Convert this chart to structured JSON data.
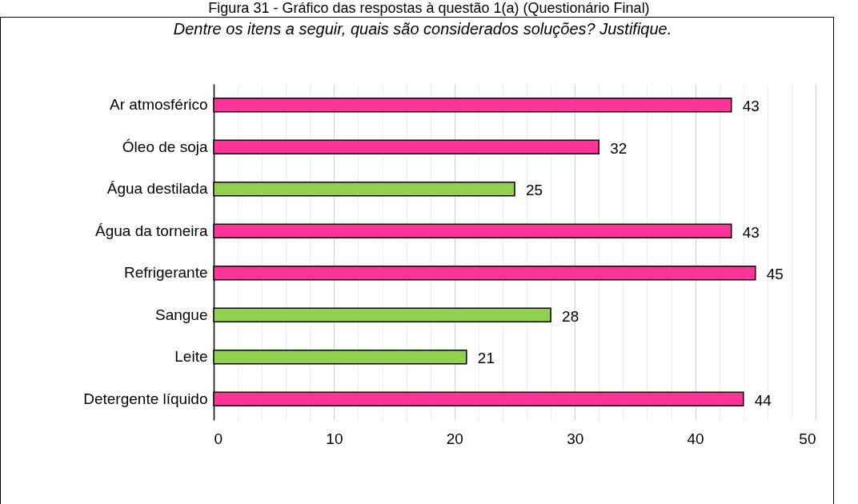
{
  "chart_data": {
    "type": "bar",
    "orientation": "horizontal",
    "title": "Figura 31 - Gráfico das respostas à questão 1(a) (Questionário Final)",
    "subtitle": "Dentre os itens a seguir, quais são considerados soluções? Justifique.",
    "categories": [
      "Ar atmosférico",
      "Óleo de soja",
      "Água destilada",
      "Água da torneira",
      "Refrigerante",
      "Sangue",
      "Leite",
      "Detergente líquido"
    ],
    "values": [
      43,
      32,
      25,
      43,
      45,
      28,
      21,
      44
    ],
    "colors": [
      "#ff3399",
      "#ff3399",
      "#92d050",
      "#ff3399",
      "#ff3399",
      "#92d050",
      "#92d050",
      "#ff3399"
    ],
    "xlim": [
      0,
      50
    ],
    "xticks": [
      0,
      {
        "value": 2,
        "label": null
      },
      {
        "value": 4,
        "label": null
      },
      {
        "value": 6,
        "label": null
      },
      {
        "value": 8,
        "label": null
      },
      10,
      {
        "value": 12,
        "label": null
      },
      {
        "value": 14,
        "label": null
      },
      {
        "value": 16,
        "label": null
      },
      {
        "value": 18,
        "label": null
      },
      20,
      {
        "value": 22,
        "label": null
      },
      {
        "value": 24,
        "label": null
      },
      {
        "value": 26,
        "label": null
      },
      {
        "value": 28,
        "label": null
      },
      30,
      {
        "value": 32,
        "label": null
      },
      {
        "value": 34,
        "label": null
      },
      {
        "value": 36,
        "label": null
      },
      {
        "value": 38,
        "label": null
      },
      40,
      {
        "value": 42,
        "label": null
      },
      {
        "value": 44,
        "label": null
      },
      {
        "value": 46,
        "label": null
      },
      {
        "value": 48,
        "label": null
      },
      50
    ],
    "grid": "x",
    "data_labels": true
  }
}
